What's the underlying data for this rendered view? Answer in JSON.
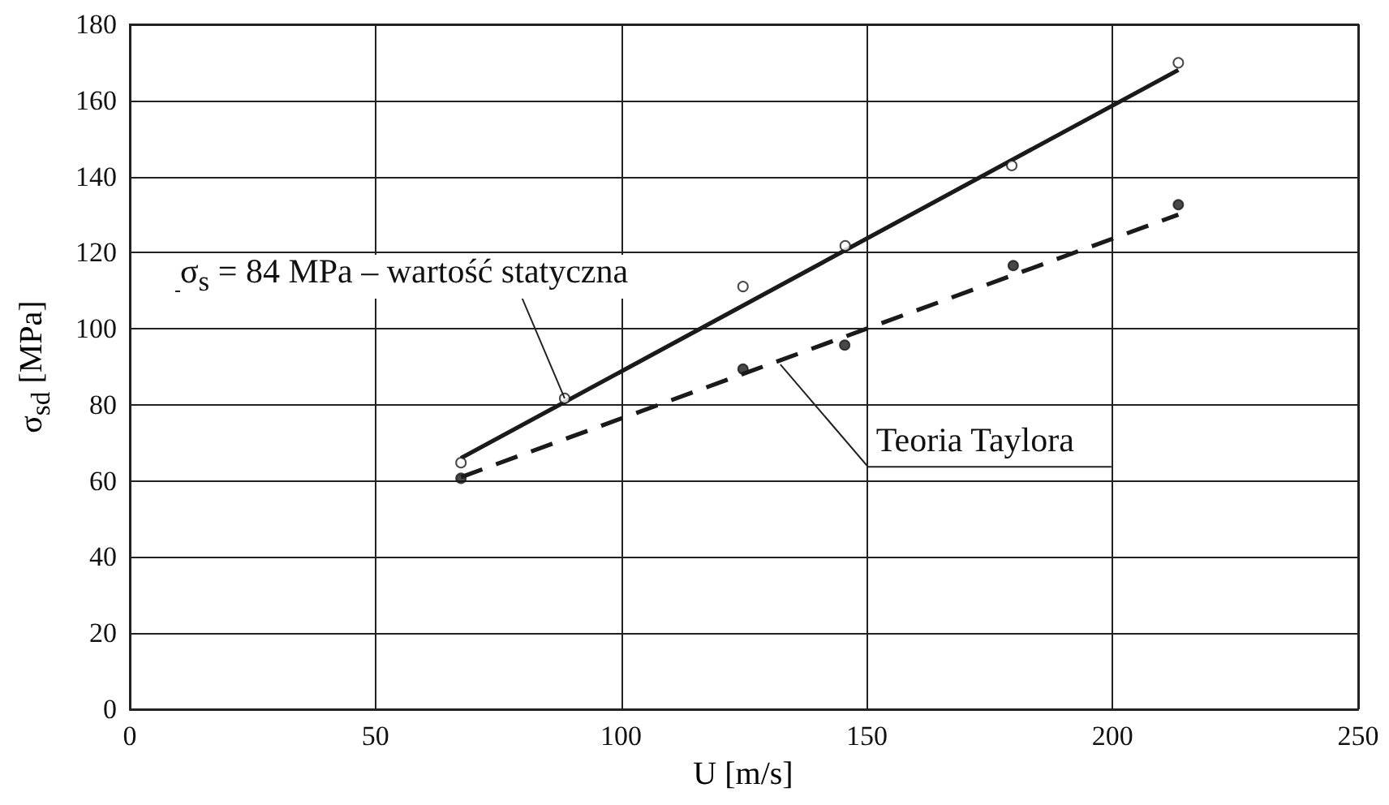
{
  "chart_data": {
    "type": "scatter",
    "xlabel": "U [m/s]",
    "ylabel": "σ$_{sd}$ [MPa]",
    "xlim": [
      0,
      250
    ],
    "xticks": [
      0,
      50,
      100,
      150,
      200,
      250
    ],
    "ylim": [
      0,
      180
    ],
    "yticks": [
      0,
      20,
      40,
      60,
      80,
      100,
      120,
      140,
      160,
      180
    ],
    "grid": true,
    "series": [
      {
        "marker": "circle",
        "color": "#ffffff",
        "x": [
          67.4,
          88.5,
          124.8,
          145.6,
          179.5,
          213.4
        ],
        "values": [
          64.8,
          81.7,
          111.1,
          121.8,
          142.9,
          169.9
        ]
      },
      {
        "marker": "circle",
        "color": "#1a1a1a",
        "x": [
          67.4,
          124.8,
          145.5,
          179.8,
          213.4
        ],
        "values": [
          60.7,
          89.4,
          95.7,
          116.6,
          132.6
        ]
      },
      {
        "type": "line",
        "line_style": "solid",
        "color": "#1a1a1a",
        "x": [
          67.4,
          213.4
        ],
        "values": [
          66,
          168
        ]
      },
      {
        "type": "line",
        "line_style": "dashed",
        "color": "#1a1a1a",
        "x": [
          67.4,
          213.4
        ],
        "values": [
          61,
          130
        ]
      }
    ],
    "annotations": [
      {
        "text": "σ$_{s}$ = 84 MPa – wartość statyczna",
        "x": 88.5,
        "y": 81.7
      },
      {
        "text": "Teoria Taylora",
        "x": 132.4,
        "y": 90.6
      }
    ]
  }
}
